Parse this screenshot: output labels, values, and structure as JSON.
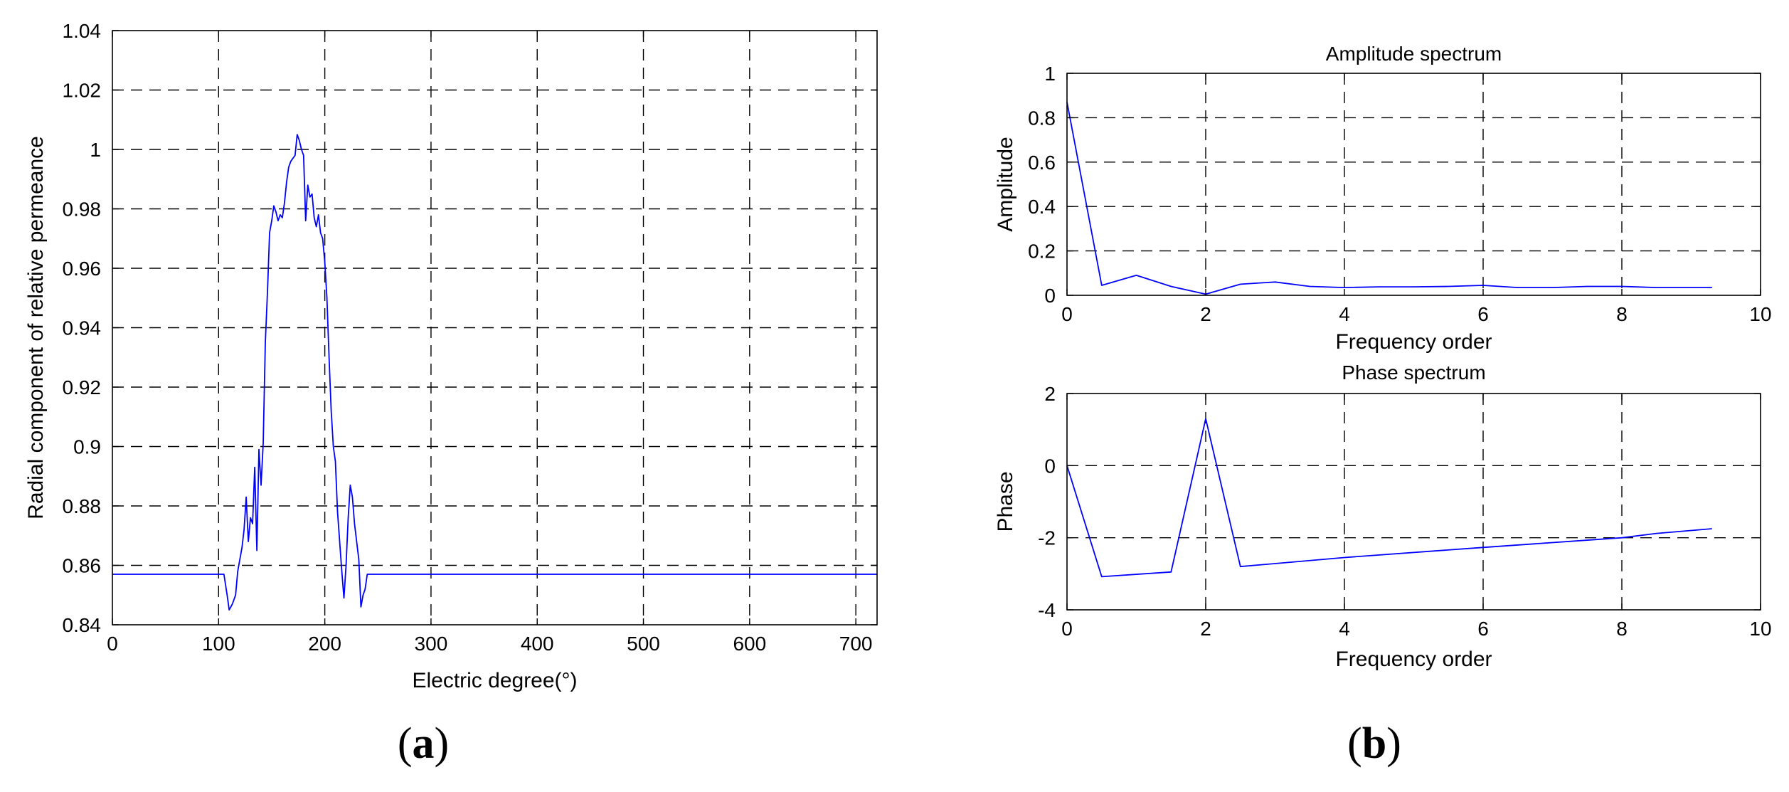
{
  "chart_data": [
    {
      "type": "line",
      "panel_label": "a",
      "title": "",
      "xlabel": "Electric degree(°)",
      "ylabel": "Radial component of relative permeance",
      "xlim": [
        0,
        720
      ],
      "ylim": [
        0.84,
        1.04
      ],
      "xticks": [
        0,
        100,
        200,
        300,
        400,
        500,
        600,
        700
      ],
      "xtick_labels": [
        "0",
        "100",
        "200",
        "300",
        "400",
        "500",
        "600",
        "700"
      ],
      "yticks": [
        0.84,
        0.86,
        0.88,
        0.9,
        0.92,
        0.94,
        0.96,
        0.98,
        1,
        1.02,
        1.04
      ],
      "ytick_labels": [
        "0.84",
        "0.86",
        "0.88",
        "0.9",
        "0.92",
        "0.94",
        "0.96",
        "0.98",
        "1",
        "1.02",
        "1.04"
      ],
      "grid": true,
      "color": "#0000ff",
      "x": [
        0,
        105,
        108,
        110,
        113,
        116,
        118,
        120,
        122,
        124,
        126,
        128,
        130,
        132,
        134,
        136,
        138,
        140,
        142,
        144,
        146,
        148,
        150,
        152,
        154,
        156,
        158,
        160,
        162,
        164,
        166,
        168,
        170,
        172,
        174,
        176,
        178,
        180,
        182,
        184,
        186,
        188,
        190,
        192,
        194,
        196,
        198,
        200,
        202,
        204,
        206,
        208,
        210,
        212,
        214,
        216,
        218,
        220,
        222,
        224,
        226,
        228,
        230,
        232,
        234,
        236,
        238,
        240,
        242,
        244,
        246,
        248,
        250,
        252,
        255,
        720
      ],
      "y": [
        0.857,
        0.857,
        0.85,
        0.845,
        0.847,
        0.85,
        0.858,
        0.862,
        0.866,
        0.872,
        0.883,
        0.868,
        0.876,
        0.874,
        0.893,
        0.865,
        0.899,
        0.887,
        0.901,
        0.935,
        0.952,
        0.972,
        0.976,
        0.981,
        0.979,
        0.976,
        0.978,
        0.977,
        0.982,
        0.989,
        0.994,
        0.996,
        0.997,
        0.998,
        1.005,
        1.003,
        1.0,
        0.998,
        0.976,
        0.988,
        0.984,
        0.985,
        0.977,
        0.974,
        0.978,
        0.972,
        0.97,
        0.962,
        0.95,
        0.93,
        0.912,
        0.9,
        0.895,
        0.878,
        0.868,
        0.858,
        0.849,
        0.86,
        0.876,
        0.887,
        0.883,
        0.874,
        0.868,
        0.862,
        0.846,
        0.85,
        0.852,
        0.857,
        0.857,
        0.857,
        0.857,
        0.857,
        0.857,
        0.857,
        0.857,
        0.857
      ]
    },
    {
      "type": "line",
      "panel_label": "b",
      "title": "Amplitude spectrum",
      "xlabel": "Frequency order",
      "ylabel": "Amplitude",
      "xlim": [
        0,
        10
      ],
      "ylim": [
        0,
        1
      ],
      "xticks": [
        0,
        2,
        4,
        6,
        8,
        10
      ],
      "xtick_labels": [
        "0",
        "2",
        "4",
        "6",
        "8",
        "10"
      ],
      "yticks": [
        0,
        0.2,
        0.4,
        0.6,
        0.8,
        1
      ],
      "ytick_labels": [
        "0",
        "0.2",
        "0.4",
        "0.6",
        "0.8",
        "1"
      ],
      "grid": true,
      "color": "#0000ff",
      "x": [
        0,
        0.5,
        1,
        1.5,
        2,
        2.5,
        3,
        3.5,
        4,
        4.5,
        5,
        5.5,
        6,
        6.5,
        7,
        7.5,
        8,
        8.5,
        9,
        9.3
      ],
      "y": [
        0.87,
        0.045,
        0.09,
        0.04,
        0.005,
        0.05,
        0.06,
        0.04,
        0.035,
        0.038,
        0.038,
        0.04,
        0.045,
        0.035,
        0.035,
        0.04,
        0.04,
        0.035,
        0.035,
        0.035
      ]
    },
    {
      "type": "line",
      "title": "Phase spectrum",
      "xlabel": "Frequency order",
      "ylabel": "Phase",
      "xlim": [
        0,
        10
      ],
      "ylim": [
        -4,
        2
      ],
      "xticks": [
        0,
        2,
        4,
        6,
        8,
        10
      ],
      "xtick_labels": [
        "0",
        "2",
        "4",
        "6",
        "8",
        "10"
      ],
      "yticks": [
        -4,
        -2,
        0,
        2
      ],
      "ytick_labels": [
        "-4",
        "-2",
        "0",
        "2"
      ],
      "grid": true,
      "color": "#0000ff",
      "x": [
        0,
        0.5,
        1.5,
        2,
        2.5,
        4,
        6,
        8,
        8.5,
        9.3
      ],
      "y": [
        0,
        -3.08,
        -2.95,
        1.3,
        -2.8,
        -2.55,
        -2.27,
        -2.0,
        -1.88,
        -1.75
      ]
    }
  ]
}
